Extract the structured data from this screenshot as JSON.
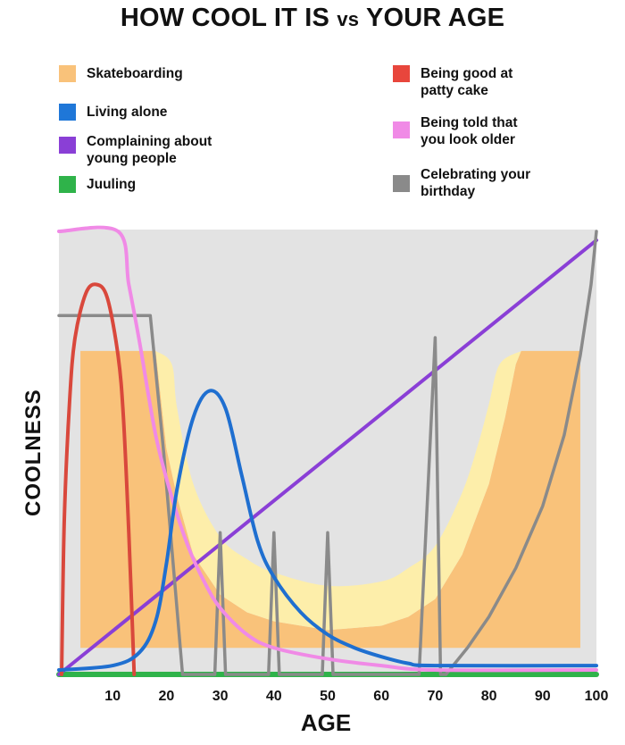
{
  "title": {
    "part1": "HOW COOL IT IS ",
    "vs": "vs",
    "part2": " YOUR AGE"
  },
  "legend": [
    {
      "label": "Skateboarding",
      "color": "#f9c27a"
    },
    {
      "label": "Living alone",
      "color": "#1f77d8"
    },
    {
      "label": "Complaining about young people",
      "color": "#8a3fd6"
    },
    {
      "label": "Juuling",
      "color": "#2fb34a"
    },
    {
      "label": "Being good at patty cake",
      "color": "#e8463c"
    },
    {
      "label": "Being told that you look older",
      "color": "#f08ae6"
    },
    {
      "label": "Celebrating your birthday",
      "color": "#8a8a8a"
    }
  ],
  "chart_data": {
    "type": "line",
    "title": "HOW COOL IT IS vs YOUR AGE",
    "xlabel": "AGE",
    "ylabel": "COOLNESS",
    "xlim": [
      0,
      100
    ],
    "ylim": [
      0,
      100
    ],
    "xticks": [
      "10",
      "20",
      "30",
      "40",
      "50",
      "60",
      "70",
      "80",
      "90",
      "100"
    ],
    "grid": false,
    "background": "#e3e3e3",
    "legend_position": "top",
    "area": {
      "name": "Skateboarding",
      "color": "#f9c27a",
      "band_color": "#fdeeaa",
      "base": 6,
      "top": [
        [
          4,
          73
        ],
        [
          18,
          73
        ],
        [
          20,
          51
        ],
        [
          22,
          40
        ],
        [
          25,
          27
        ],
        [
          30,
          18
        ],
        [
          35,
          14
        ],
        [
          40,
          12
        ],
        [
          50,
          10
        ],
        [
          60,
          11
        ],
        [
          65,
          13
        ],
        [
          70,
          17
        ],
        [
          75,
          27
        ],
        [
          80,
          43
        ],
        [
          83,
          58
        ],
        [
          85,
          70
        ],
        [
          86,
          73
        ],
        [
          97,
          73
        ]
      ],
      "band_top": [
        [
          18,
          73
        ],
        [
          21,
          70
        ],
        [
          22,
          60
        ],
        [
          25,
          43
        ],
        [
          30,
          31
        ],
        [
          35,
          26
        ],
        [
          40,
          23
        ],
        [
          50,
          20
        ],
        [
          60,
          21
        ],
        [
          65,
          24
        ],
        [
          70,
          29
        ],
        [
          75,
          41
        ],
        [
          78,
          52
        ],
        [
          80,
          61
        ],
        [
          82,
          70
        ],
        [
          86,
          73
        ]
      ]
    },
    "series": [
      {
        "name": "Juuling",
        "color": "#2fb34a",
        "points": [
          [
            0,
            0
          ],
          [
            100,
            0
          ]
        ]
      },
      {
        "name": "Complaining about young people",
        "color": "#8a3fd6",
        "points": [
          [
            0,
            0
          ],
          [
            100,
            98
          ]
        ]
      },
      {
        "name": "Celebrating your birthday",
        "color": "#8a8a8a",
        "points": [
          [
            0,
            81
          ],
          [
            17,
            81
          ],
          [
            19.5,
            50
          ],
          [
            23,
            0
          ],
          [
            29,
            0
          ],
          [
            30,
            32
          ],
          [
            31,
            0
          ],
          [
            39,
            0
          ],
          [
            40,
            32
          ],
          [
            41,
            0
          ],
          [
            49,
            0
          ],
          [
            50,
            32
          ],
          [
            51,
            0
          ],
          [
            67,
            0
          ],
          [
            70,
            76
          ],
          [
            71,
            0
          ],
          [
            72,
            0
          ],
          [
            76,
            6
          ],
          [
            80,
            13
          ],
          [
            85,
            24
          ],
          [
            90,
            38
          ],
          [
            94,
            54
          ],
          [
            97,
            72
          ],
          [
            99,
            88
          ],
          [
            100,
            100
          ]
        ]
      },
      {
        "name": "Being told that you look older",
        "color": "#f08ae6",
        "points": [
          [
            0,
            100
          ],
          [
            11,
            100
          ],
          [
            13,
            88
          ],
          [
            15,
            75
          ],
          [
            18,
            54
          ],
          [
            21,
            40
          ],
          [
            24,
            29
          ],
          [
            27,
            21
          ],
          [
            30,
            15
          ],
          [
            35,
            9
          ],
          [
            40,
            6
          ],
          [
            50,
            3.5
          ],
          [
            60,
            2
          ],
          [
            70,
            1
          ],
          [
            100,
            1
          ]
        ]
      },
      {
        "name": "Being good at patty cake",
        "color": "#d9483c",
        "points": [
          [
            0.5,
            0
          ],
          [
            1,
            35
          ],
          [
            2,
            62
          ],
          [
            3,
            76
          ],
          [
            5,
            86
          ],
          [
            7,
            88
          ],
          [
            9,
            85
          ],
          [
            11,
            72
          ],
          [
            12,
            58
          ],
          [
            13,
            32
          ],
          [
            14,
            0
          ]
        ]
      },
      {
        "name": "Living alone",
        "color": "#1f6fd0",
        "points": [
          [
            0,
            1
          ],
          [
            10,
            2
          ],
          [
            15,
            5
          ],
          [
            18,
            12
          ],
          [
            20,
            25
          ],
          [
            22,
            42
          ],
          [
            25,
            58
          ],
          [
            28,
            64
          ],
          [
            31,
            60
          ],
          [
            34,
            45
          ],
          [
            37,
            30
          ],
          [
            40,
            22
          ],
          [
            45,
            14
          ],
          [
            50,
            9
          ],
          [
            55,
            6
          ],
          [
            60,
            4
          ],
          [
            65,
            2.5
          ],
          [
            70,
            2
          ],
          [
            100,
            2
          ]
        ]
      }
    ]
  }
}
